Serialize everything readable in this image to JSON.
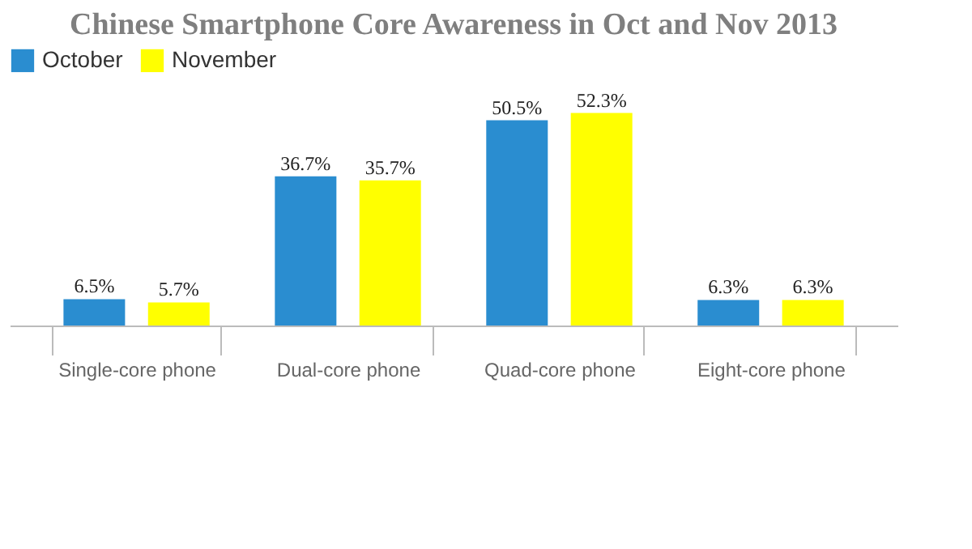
{
  "chart_data": {
    "type": "bar",
    "title": "Chinese Smartphone Core Awareness in Oct and Nov 2013",
    "categories": [
      "Single-core phone",
      "Dual-core phone",
      "Quad-core phone",
      "Eight-core phone"
    ],
    "series": [
      {
        "name": "October",
        "color": "#2a8dd0",
        "values": [
          6.5,
          36.7,
          50.5,
          6.3
        ],
        "value_labels": [
          "6.5%",
          "36.7%",
          "50.5%",
          "6.3%"
        ]
      },
      {
        "name": "November",
        "color": "#ffff00",
        "values": [
          5.7,
          35.7,
          52.3,
          6.3
        ],
        "value_labels": [
          "5.7%",
          "35.7%",
          "52.3%",
          "6.3%"
        ]
      }
    ],
    "tick_labels": "x",
    "legend": "top",
    "grid": false
  }
}
